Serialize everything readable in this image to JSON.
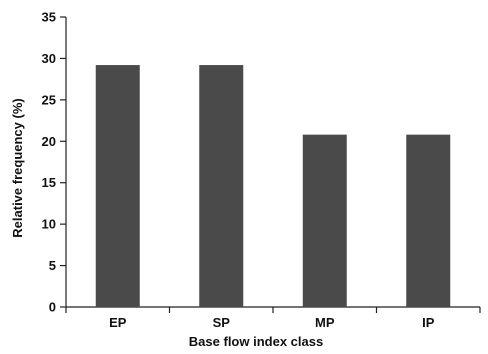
{
  "chart_data": {
    "type": "bar",
    "categories": [
      "EP",
      "SP",
      "MP",
      "IP"
    ],
    "values": [
      29.2,
      29.2,
      20.8,
      20.8
    ],
    "title": "",
    "xlabel": "Base flow index class",
    "ylabel": "Relative frequency (%)",
    "ylim": [
      0,
      35
    ],
    "yticks": [
      0,
      5,
      10,
      15,
      20,
      25,
      30,
      35
    ],
    "grid": false,
    "bar_color": "#4a4a4a"
  }
}
